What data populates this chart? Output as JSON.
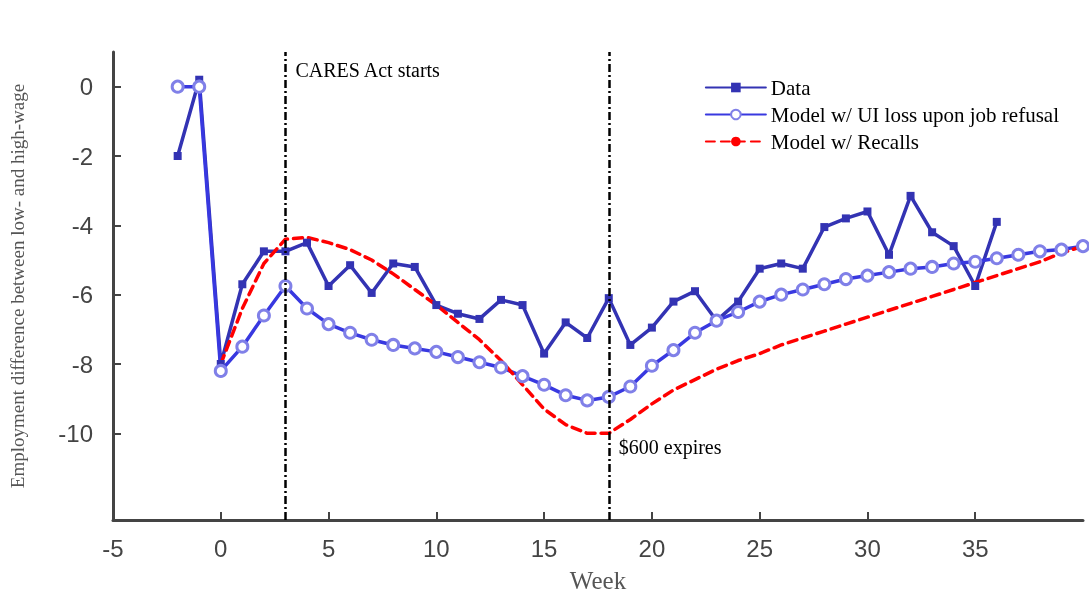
{
  "chart_data": {
    "type": "line",
    "xlabel": "Week",
    "ylabel": "Employment difference between low- and high-wage",
    "xlim": [
      -5,
      40
    ],
    "xticks": [
      -5,
      0,
      5,
      10,
      15,
      20,
      25,
      30,
      35
    ],
    "ylim": [
      -12.5,
      1
    ],
    "yticks": [
      0,
      -2,
      -4,
      -6,
      -8,
      -10
    ],
    "grid": false,
    "legend": "top right",
    "series": [
      {
        "name": "Data",
        "color": "#3333b3",
        "marker": "square",
        "line_style": "solid",
        "x": [
          -2,
          -1,
          0,
          1,
          2,
          3,
          4,
          5,
          6,
          7,
          8,
          9,
          10,
          11,
          12,
          13,
          14,
          15,
          16,
          17,
          18,
          19,
          20,
          21,
          22,
          23,
          24,
          25,
          26,
          27,
          28,
          29,
          30,
          31,
          32,
          33,
          34,
          35,
          36
        ],
        "values": [
          -2.0,
          0.2,
          -8.0,
          -5.7,
          -4.75,
          -4.75,
          -4.5,
          -5.75,
          -5.15,
          -5.95,
          -5.1,
          -5.2,
          -6.3,
          -6.55,
          -6.7,
          -6.15,
          -6.3,
          -7.7,
          -6.8,
          -7.25,
          -6.1,
          -7.45,
          -6.95,
          -6.2,
          -5.9,
          -6.75,
          -6.2,
          -5.25,
          -5.1,
          -5.25,
          -4.05,
          -3.8,
          -3.6,
          -4.85,
          -3.15,
          -4.2,
          -4.6,
          -5.75,
          -3.9
        ]
      },
      {
        "name": "Model w/ UI loss upon job refusal",
        "color": "#3838e0",
        "marker": "circle",
        "line_style": "solid",
        "x": [
          -2,
          -1,
          0,
          1,
          2,
          3,
          4,
          5,
          6,
          7,
          8,
          9,
          10,
          11,
          12,
          13,
          14,
          15,
          16,
          17,
          18,
          19,
          20,
          21,
          22,
          23,
          24,
          25,
          26,
          27,
          28,
          29,
          30,
          31,
          32,
          33,
          34,
          35,
          36,
          37,
          38,
          39,
          40
        ],
        "values": [
          0,
          0,
          -8.2,
          -7.5,
          -6.6,
          -5.75,
          -6.4,
          -6.85,
          -7.1,
          -7.3,
          -7.45,
          -7.55,
          -7.65,
          -7.8,
          -7.95,
          -8.1,
          -8.35,
          -8.6,
          -8.9,
          -9.05,
          -8.95,
          -8.65,
          -8.05,
          -7.6,
          -7.1,
          -6.75,
          -6.5,
          -6.2,
          -6.0,
          -5.85,
          -5.7,
          -5.55,
          -5.45,
          -5.35,
          -5.25,
          -5.2,
          -5.1,
          -5.05,
          -4.95,
          -4.85,
          -4.75,
          -4.7,
          -4.6
        ]
      },
      {
        "name": "Model w/ Recalls",
        "color": "#ff0000",
        "marker": "none",
        "line_style": "dashed",
        "x": [
          0,
          1,
          2,
          3,
          4,
          5,
          6,
          7,
          8,
          9,
          10,
          11,
          12,
          13,
          14,
          15,
          16,
          17,
          18,
          19,
          20,
          21,
          22,
          23,
          24,
          25,
          26,
          27,
          28,
          29,
          30,
          31,
          32,
          33,
          34,
          35,
          36,
          37,
          38,
          39,
          40
        ],
        "values": [
          -8.0,
          -6.4,
          -5.1,
          -4.4,
          -4.35,
          -4.5,
          -4.7,
          -5.0,
          -5.4,
          -5.85,
          -6.3,
          -6.8,
          -7.3,
          -7.9,
          -8.6,
          -9.3,
          -9.75,
          -10.0,
          -10.0,
          -9.6,
          -9.15,
          -8.75,
          -8.45,
          -8.15,
          -7.9,
          -7.7,
          -7.45,
          -7.25,
          -7.05,
          -6.85,
          -6.65,
          -6.45,
          -6.25,
          -6.05,
          -5.85,
          -5.65,
          -5.45,
          -5.25,
          -5.05,
          -4.8,
          -4.6
        ]
      }
    ],
    "ref_lines": [
      {
        "axis": "x",
        "value": 3,
        "label": "CARES Act starts",
        "color": "#000000",
        "line_style": "dashdot"
      },
      {
        "axis": "x",
        "value": 18,
        "label": "$600 expires",
        "color": "#000000",
        "line_style": "dashdot"
      }
    ]
  }
}
